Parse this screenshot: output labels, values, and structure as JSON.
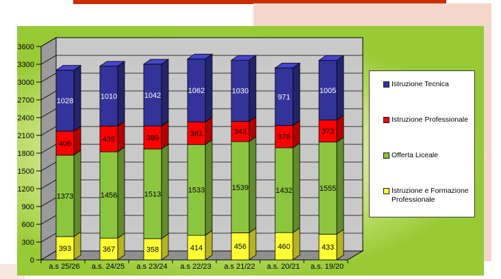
{
  "accents": {
    "top_bar_color": "#CB2E02",
    "side_panel_color": "#F4D7CA",
    "corner_accent_color": "#F8E7DE"
  },
  "chart_data": {
    "type": "bar",
    "variant": "3d-stacked-column",
    "title": "",
    "xlabel": "",
    "ylabel": "",
    "categories": [
      "a.s 25/26",
      "a.s. 24/25",
      "a.s 23/24",
      "a.s 22/23",
      "a.s 21/22",
      "a.s. 20/21",
      "a.s. 19/20"
    ],
    "series": [
      {
        "name": "Istruzione e Formazione Professionale",
        "color": "#FFFF33",
        "label_color": "#000000",
        "values": [
          393,
          367,
          358,
          414,
          456,
          460,
          433
        ]
      },
      {
        "name": "Offerta Liceale",
        "color": "#8CC63F",
        "label_color": "#000000",
        "values": [
          1373,
          1456,
          1513,
          1533,
          1539,
          1432,
          1555
        ]
      },
      {
        "name": "Istruzione Professionale",
        "color": "#FF0000",
        "label_color": "#000000",
        "values": [
          406,
          435,
          389,
          381,
          343,
          376,
          373
        ]
      },
      {
        "name": "Istruzione Tecnica",
        "color": "#333399",
        "label_color": "#FFFFFF",
        "values": [
          1028,
          1010,
          1042,
          1062,
          1030,
          971,
          1005
        ]
      }
    ],
    "y_axis": {
      "min": 0,
      "max": 3600,
      "step": 300
    },
    "grid": true,
    "legend_position": "right",
    "legend_order_series_indices": [
      3,
      2,
      1,
      0
    ],
    "plot": {
      "back_wall_color": "#C9C9C9",
      "side_wall_color": "#9B9B9B",
      "floor_color": "#8F8F8F",
      "bg_center": "#FFFFFF",
      "bg_mid": "#BCDD6A",
      "bg_edge": "#98CA35"
    }
  }
}
